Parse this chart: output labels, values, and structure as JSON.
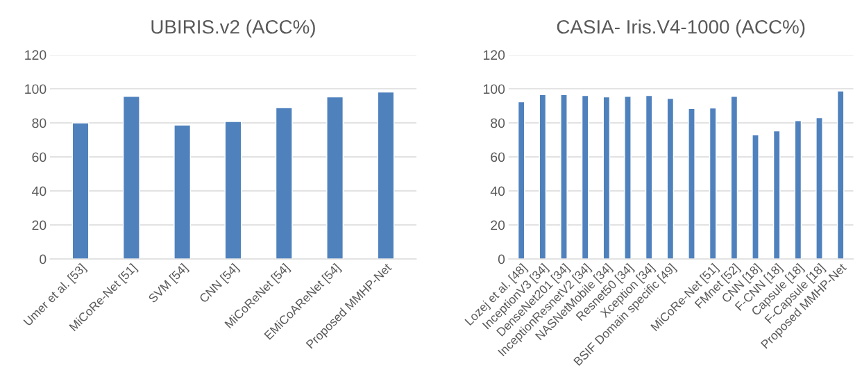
{
  "chart_data": [
    {
      "type": "bar",
      "title": "UBIRIS.v2 (ACC%)",
      "categories": [
        "Umer et al. [53]",
        "MiCoRe-Net [51]",
        "SVM [54]",
        "CNN [54]",
        "MiCoReNet [54]",
        "EMiCoAReNet [54]",
        "Proposed MMHP-Net"
      ],
      "values": [
        80.0,
        95.6,
        78.7,
        80.8,
        88.9,
        95.3,
        98.1
      ],
      "color": "#4f81bd",
      "ylim": [
        0,
        120
      ],
      "yticks": [
        0,
        20,
        40,
        60,
        80,
        100,
        120
      ],
      "grid": "y",
      "legend": false
    },
    {
      "type": "bar",
      "title": "CASIA- Iris.V4-1000 (ACC%)",
      "categories": [
        "Lozej et al. [48]",
        "InceptionV3 [34]",
        "DenseNet201 [34]",
        "InceptionResnetV2 [34]",
        "NASNetMobile [34]",
        "Resnet50 [34]",
        "Xception [34]",
        "BSIF Domain specific [49]",
        null,
        "MiCoRe-Net [51]",
        "FMnet [52]",
        "CNN [18]",
        "F-CNN [18]",
        "Capsule [18]",
        "F-Capsule [18]",
        "Proposed MMHP-Net"
      ],
      "values": [
        92.4,
        96.6,
        96.6,
        96.1,
        95.3,
        95.6,
        96.1,
        94.3,
        88.4,
        88.7,
        95.6,
        72.9,
        75.3,
        81.3,
        83.0,
        98.7
      ],
      "color": "#4f81bd",
      "ylim": [
        0,
        120
      ],
      "yticks": [
        0,
        20,
        40,
        60,
        80,
        100,
        120
      ],
      "grid": "y",
      "legend": false
    }
  ]
}
